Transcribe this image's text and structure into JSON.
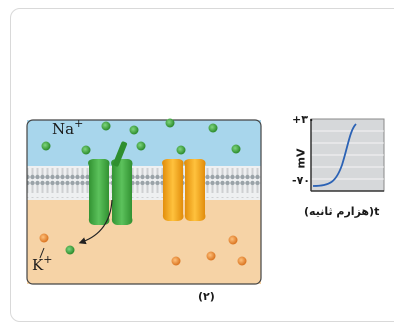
{
  "labels": {
    "sodium": "Na",
    "sodium_charge": "+",
    "potassium": "K",
    "potassium_charge": "+",
    "figure_number": "(۲)"
  },
  "graph": {
    "y_top": "+۳۰",
    "y_unit": "mV",
    "y_bottom": "-۷۰",
    "x_label": "t(هزارم ثانیه)"
  },
  "colors": {
    "extracellular": "#a8d6ec",
    "intracellular": "#f6d3a6",
    "sodium_channel": "#3eaa3e",
    "potassium_channel": "#f2a516",
    "graph_curve": "#2b62b5"
  }
}
